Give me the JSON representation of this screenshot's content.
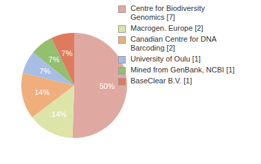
{
  "chart_data": {
    "type": "pie",
    "categories": [
      "Centre for Biodiversity Genomics [7]",
      "Macrogen. Europe [2]",
      "Canadian Centre for DNA Barcoding [2]",
      "University of Oulu [1]",
      "Mined from GenBank, NCBI [1]",
      "BaseClear B.V. [1]"
    ],
    "values": [
      50,
      14,
      14,
      7,
      7,
      7
    ],
    "value_labels": [
      "50%",
      "14%",
      "14%",
      "7%",
      "7%",
      "7%"
    ],
    "colors": [
      "#dfa9a1",
      "#dde4a8",
      "#efae7c",
      "#a8bde4",
      "#93bf6e",
      "#e07a5c"
    ],
    "data_labels": true,
    "legend": "upper right"
  }
}
